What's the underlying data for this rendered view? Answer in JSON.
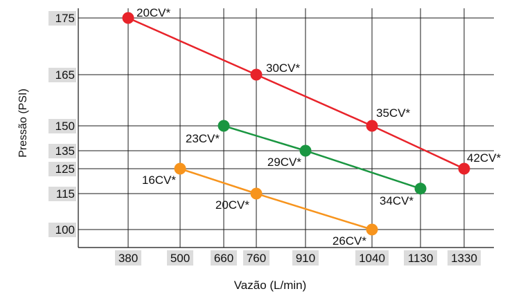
{
  "chart_data": {
    "type": "line",
    "title": "",
    "xlabel": "Vazão (L/min)",
    "ylabel": "Pressão (PSI)",
    "x_ticks": [
      380,
      500,
      660,
      760,
      910,
      1040,
      1130,
      1330
    ],
    "y_ticks": [
      100,
      115,
      125,
      135,
      150,
      165,
      175
    ],
    "grid": true,
    "legend": "none",
    "series": [
      {
        "color": "#e8232a",
        "points": [
          {
            "x": 380,
            "y": 175,
            "label": "20CV*"
          },
          {
            "x": 760,
            "y": 165,
            "label": "30CV*"
          },
          {
            "x": 1040,
            "y": 150,
            "label": "35CV*"
          },
          {
            "x": 1330,
            "y": 125,
            "label": "42CV*"
          }
        ]
      },
      {
        "color": "#1a9641",
        "points": [
          {
            "x": 660,
            "y": 150,
            "label": "23CV*"
          },
          {
            "x": 910,
            "y": 135,
            "label": "29CV*"
          },
          {
            "x": 1130,
            "y": 117,
            "label": "34CV*"
          }
        ]
      },
      {
        "color": "#f7941d",
        "points": [
          {
            "x": 500,
            "y": 125,
            "label": "16CV*"
          },
          {
            "x": 760,
            "y": 115,
            "label": "20CV*"
          },
          {
            "x": 1040,
            "y": 100,
            "label": "26CV*"
          }
        ]
      }
    ]
  }
}
